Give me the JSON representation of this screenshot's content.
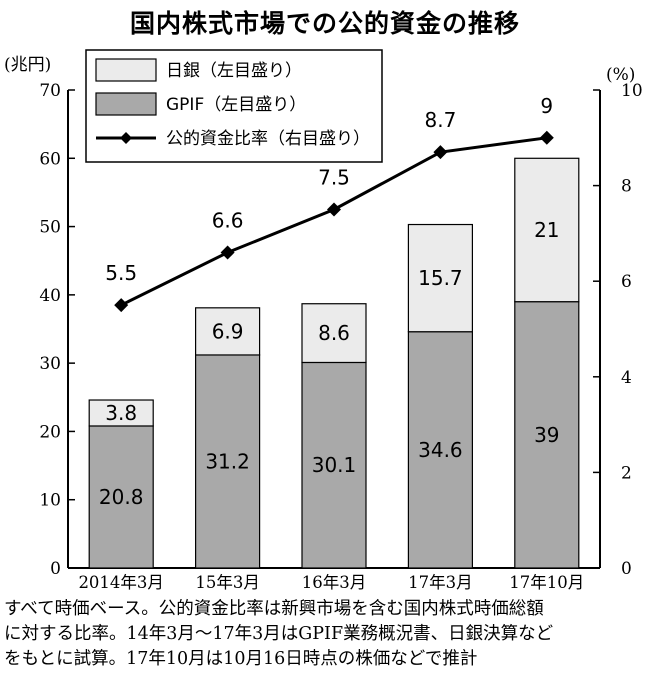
{
  "title": "国内株式市場での公的資金の推移",
  "note": "すべて時価ベース。公的資金比率は新興市場を含む国内株式時価総額\nに対する比率。14年3月～17年3月はGPIF業務概況書、日銀決算など\nをもとに試算。17年10月は10月16日時点の株価などで推計",
  "colors": {
    "boj": "#ebebeb",
    "gpif": "#a9a9a9",
    "line": "#000000"
  },
  "chart_data": {
    "type": "bar",
    "stacked": true,
    "categories": [
      "2014年3月",
      "15年3月",
      "16年3月",
      "17年3月",
      "17年10月"
    ],
    "series": [
      {
        "name": "GPIF（左目盛り）",
        "values": [
          20.8,
          31.2,
          30.1,
          34.6,
          39
        ]
      },
      {
        "name": "日銀（左目盛り）",
        "values": [
          3.8,
          6.9,
          8.6,
          15.7,
          21
        ]
      }
    ],
    "line_series": {
      "name": "公的資金比率（右目盛り）",
      "values": [
        5.5,
        6.6,
        7.5,
        8.7,
        9
      ]
    },
    "value_labels": {
      "gpif": [
        "20.8",
        "31.2",
        "30.1",
        "34.6",
        "39"
      ],
      "boj": [
        "3.8",
        "6.9",
        "8.6",
        "15.7",
        "21"
      ],
      "line": [
        "5.5",
        "6.6",
        "7.5",
        "8.7",
        "9"
      ]
    },
    "yleft": {
      "unit": "(兆円)",
      "range": [
        0,
        70
      ],
      "ticks": [
        "0",
        "10",
        "20",
        "30",
        "40",
        "50",
        "60",
        "70"
      ]
    },
    "yright": {
      "unit": "(%)",
      "range": [
        0,
        10
      ],
      "ticks": [
        "0",
        "2",
        "4",
        "6",
        "8",
        "10"
      ]
    },
    "legend": {
      "placement": "top-left",
      "items": [
        {
          "label": "日銀（左目盛り）",
          "kind": "boj"
        },
        {
          "label": "GPIF（左目盛り）",
          "kind": "gpif"
        },
        {
          "label": "公的資金比率（右目盛り）",
          "kind": "line"
        }
      ]
    },
    "grid": false
  }
}
